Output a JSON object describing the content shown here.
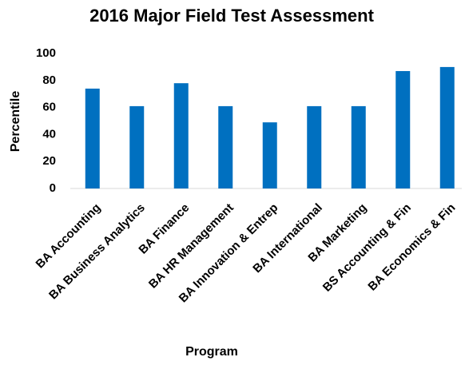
{
  "chart_data": {
    "type": "bar",
    "title": "2016 Major Field Test Assessment",
    "x_label": "Program",
    "y_label": "Percentile",
    "categories": [
      "BA Accounting",
      "BA Business Analytics",
      "BA Finance",
      "BA HR Management",
      "BA Innovation & Entrep",
      "BA International",
      "BA Marketing",
      "BS Accounting & Fin",
      "BA Economics & Fin"
    ],
    "values": [
      74,
      61,
      78,
      61,
      49,
      61,
      61,
      87,
      90
    ],
    "color": "#0070c0",
    "ylim": [
      0,
      100
    ],
    "yticks": [
      0,
      20,
      40,
      60,
      80,
      100
    ],
    "grid": false
  }
}
